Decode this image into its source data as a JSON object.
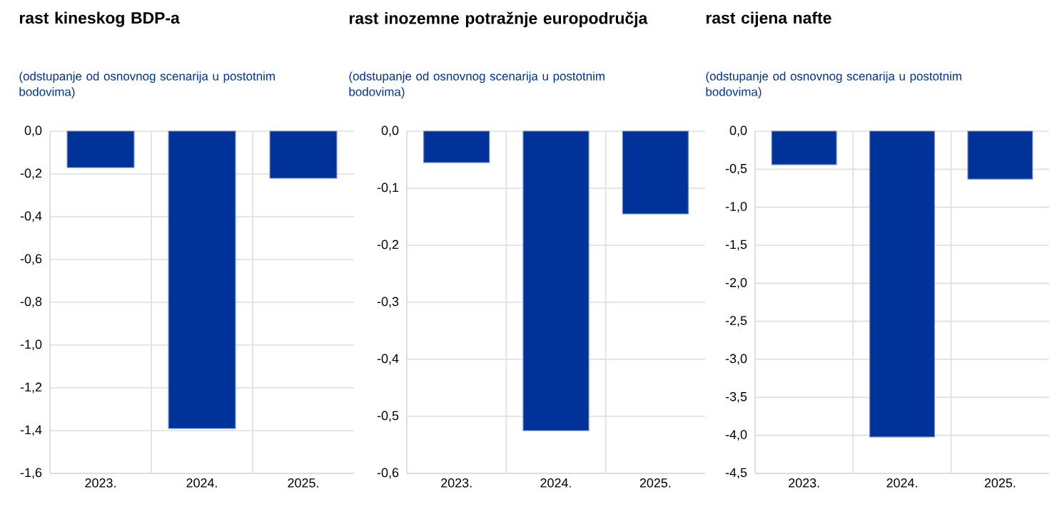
{
  "chart_data": [
    {
      "type": "bar",
      "title": "rast kineskog BDP-a",
      "subtitle": "(odstupanje od osnovnog scenarija u postotnim bodovima)",
      "categories": [
        "2023.",
        "2024.",
        "2025."
      ],
      "values": [
        -0.17,
        -1.39,
        -0.22
      ],
      "color": "#003299",
      "ylim": [
        -1.6,
        0
      ],
      "yticks": [
        {
          "value": -1.6,
          "label": "-1,6"
        },
        {
          "value": -1.4,
          "label": "-1,4"
        },
        {
          "value": -1.2,
          "label": "-1,2"
        },
        {
          "value": -1.0,
          "label": "-1,0"
        },
        {
          "value": -0.8,
          "label": "-0,8"
        },
        {
          "value": -0.6,
          "label": "-0,6"
        },
        {
          "value": -0.4,
          "label": "-0,4"
        },
        {
          "value": -0.2,
          "label": "-0,2"
        },
        {
          "value": 0,
          "label": "0,0"
        }
      ],
      "grid": true
    },
    {
      "type": "bar",
      "title": "rast inozemne potražnje europodručja",
      "subtitle": "(odstupanje od osnovnog scenarija u postotnim bodovima)",
      "categories": [
        "2023.",
        "2024.",
        "2025."
      ],
      "values": [
        -0.055,
        -0.525,
        -0.145
      ],
      "color": "#003299",
      "ylim": [
        -0.6,
        0
      ],
      "yticks": [
        {
          "value": -0.6,
          "label": "-0,6"
        },
        {
          "value": -0.5,
          "label": "-0,5"
        },
        {
          "value": -0.4,
          "label": "-0,4"
        },
        {
          "value": -0.3,
          "label": "-0,3"
        },
        {
          "value": -0.2,
          "label": "-0,2"
        },
        {
          "value": -0.1,
          "label": "-0,1"
        },
        {
          "value": 0,
          "label": "0,0"
        }
      ],
      "grid": true
    },
    {
      "type": "bar",
      "title": "rast cijena nafte",
      "subtitle": "(odstupanje od osnovnog scenarija u postotnim bodovima)",
      "categories": [
        "2023.",
        "2024.",
        "2025."
      ],
      "values": [
        -0.44,
        -4.02,
        -0.63
      ],
      "color": "#003299",
      "ylim": [
        -4.5,
        0
      ],
      "yticks": [
        {
          "value": -4.5,
          "label": "-4,5"
        },
        {
          "value": -4.0,
          "label": "-4,0"
        },
        {
          "value": -3.5,
          "label": "-3,5"
        },
        {
          "value": -3.0,
          "label": "-3,0"
        },
        {
          "value": -2.5,
          "label": "-2,5"
        },
        {
          "value": -2.0,
          "label": "-2,0"
        },
        {
          "value": -1.5,
          "label": "-1,5"
        },
        {
          "value": -1.0,
          "label": "-1,0"
        },
        {
          "value": -0.5,
          "label": "-0,5"
        },
        {
          "value": 0,
          "label": "0,0"
        }
      ],
      "grid": true
    }
  ]
}
